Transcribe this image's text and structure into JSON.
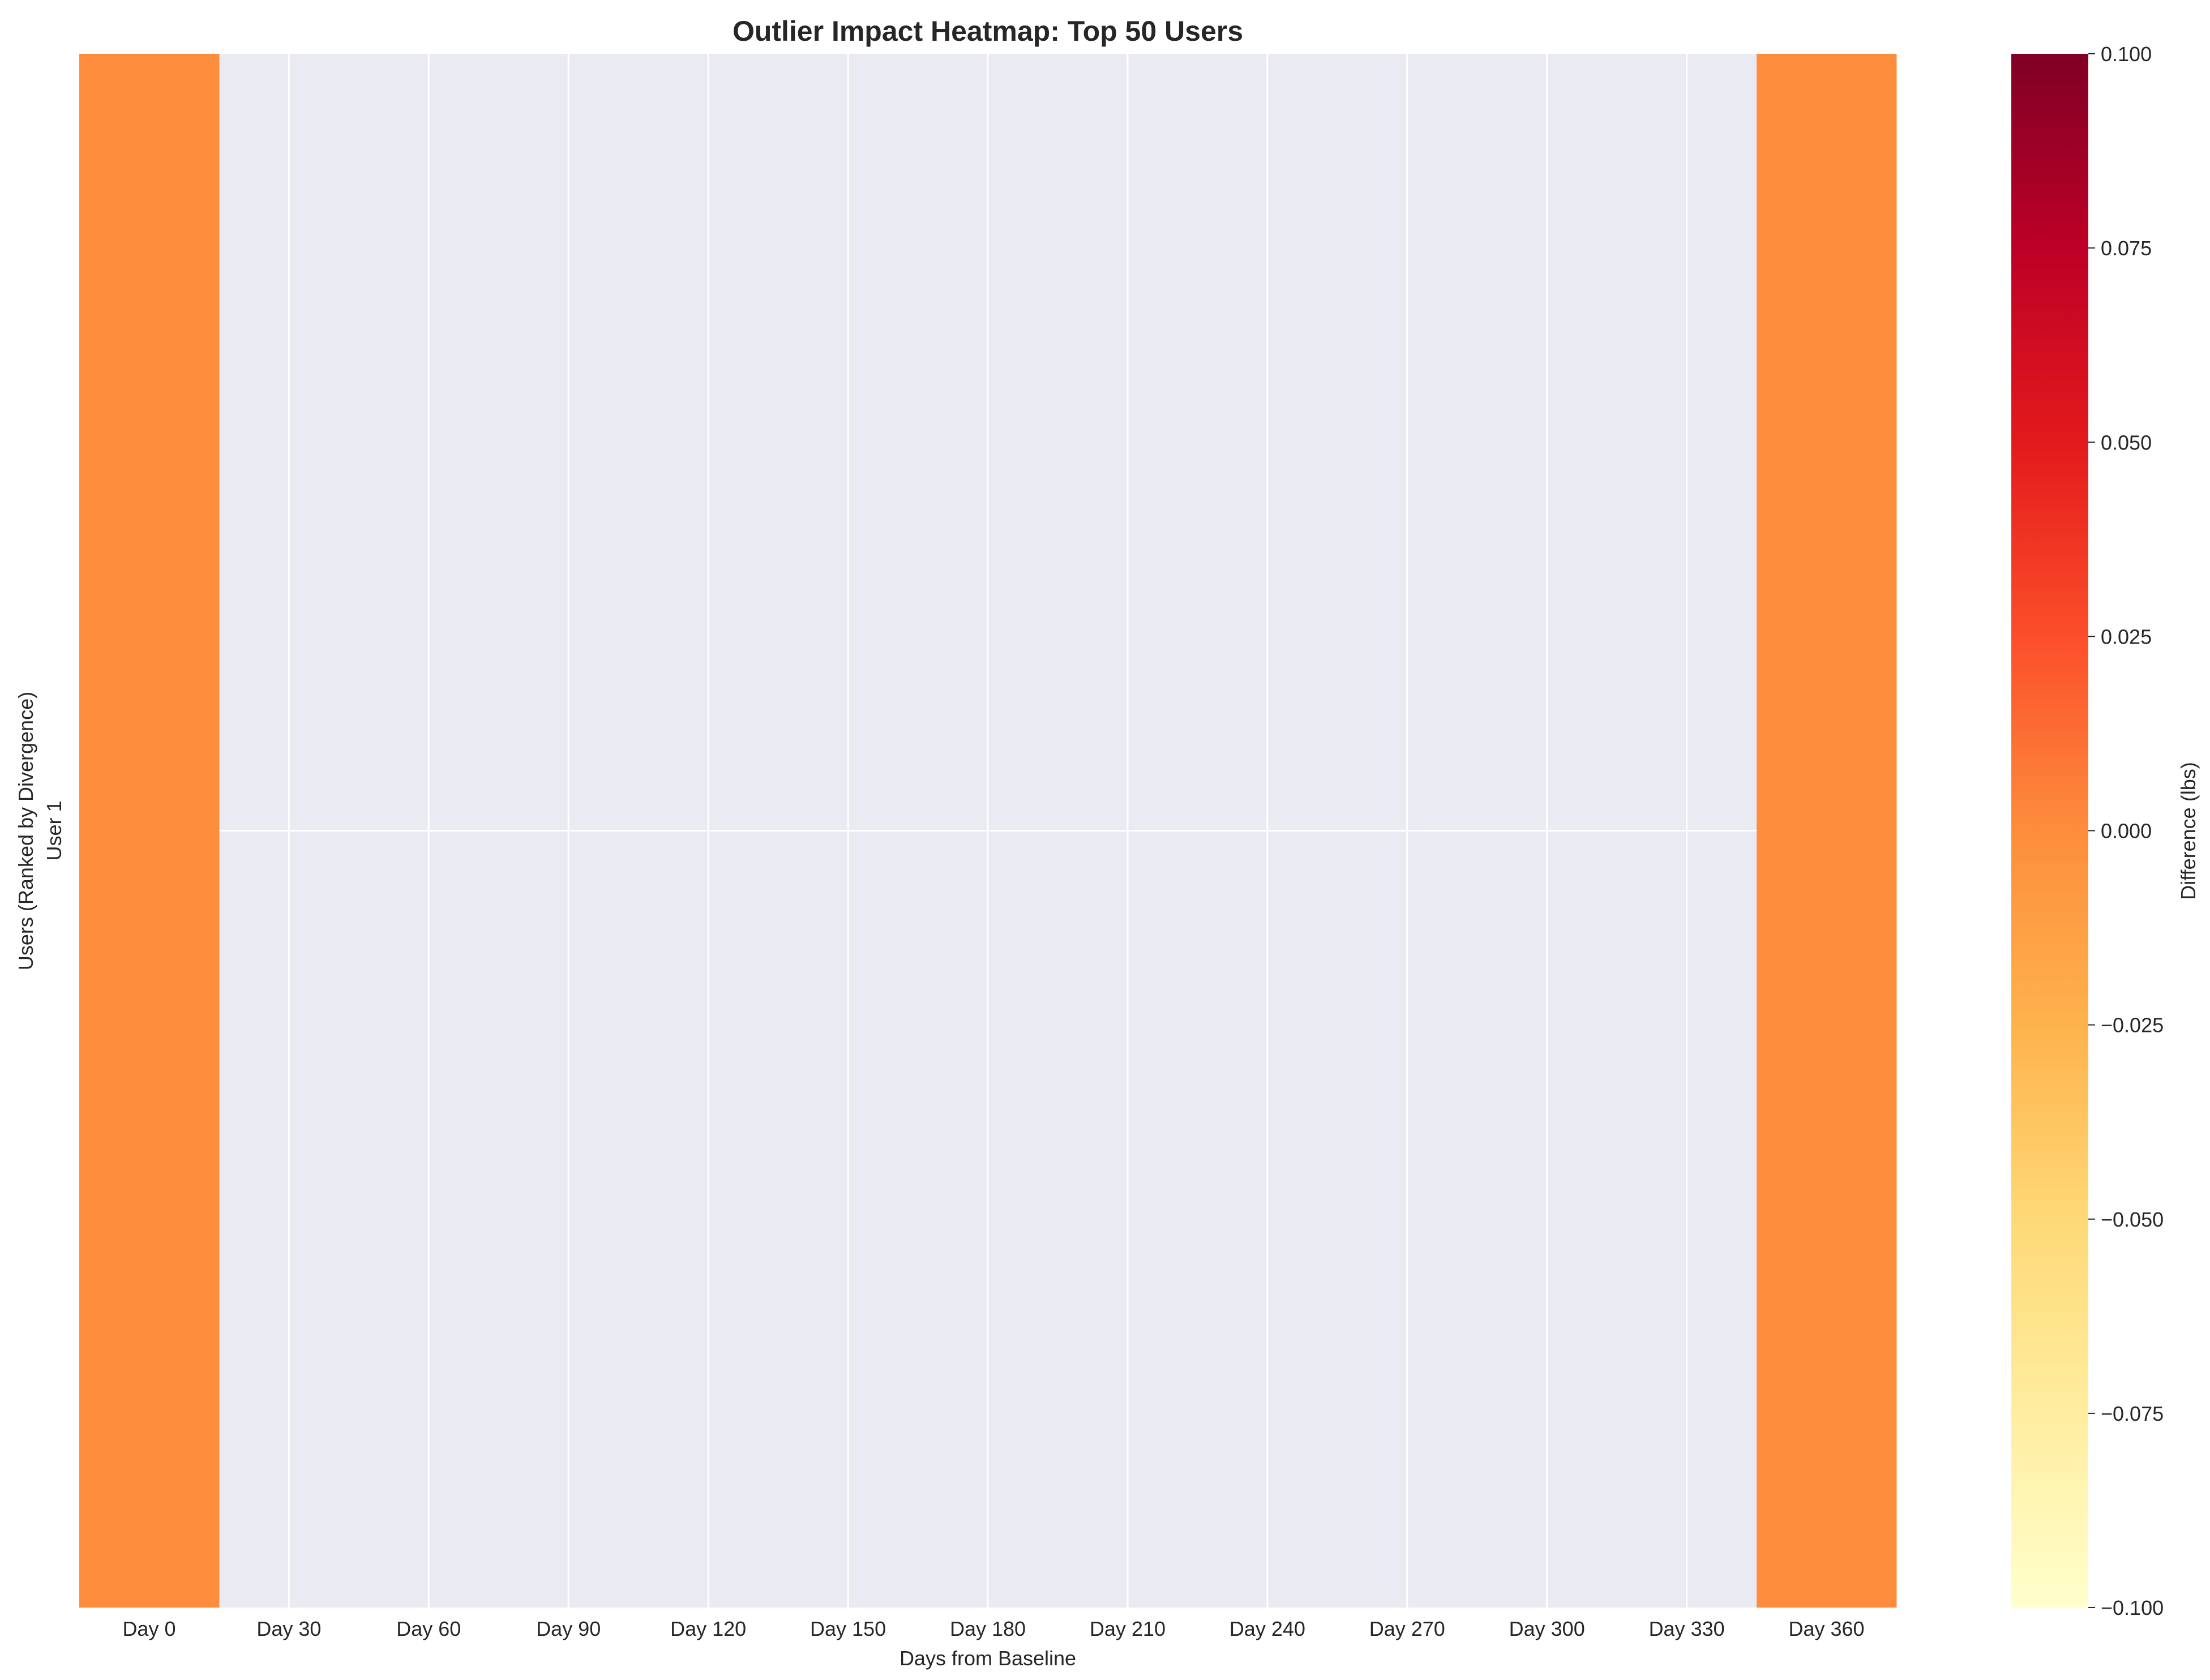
{
  "chart_data": {
    "type": "heatmap",
    "title": "Outlier Impact Heatmap: Top 50 Users",
    "xlabel": "Days from Baseline",
    "ylabel": "Users (Ranked by Divergence)",
    "x_categories": [
      "Day 0",
      "Day 30",
      "Day 60",
      "Day 90",
      "Day 120",
      "Day 150",
      "Day 180",
      "Day 210",
      "Day 240",
      "Day 270",
      "Day 300",
      "Day 330",
      "Day 360"
    ],
    "y_categories": [
      "User 1"
    ],
    "values": [
      [
        0.0,
        null,
        null,
        null,
        null,
        null,
        null,
        null,
        null,
        null,
        null,
        null,
        0.0
      ]
    ],
    "colorbar": {
      "label": "Difference (lbs)",
      "colormap": "YlOrRd",
      "vmin": -0.1,
      "vmax": 0.1,
      "ticks": [
        "−0.100",
        "−0.075",
        "−0.050",
        "−0.025",
        "0.000",
        "0.025",
        "0.050",
        "0.075",
        "0.100"
      ]
    },
    "missing_color": "#eaeaf2",
    "grid": true
  }
}
